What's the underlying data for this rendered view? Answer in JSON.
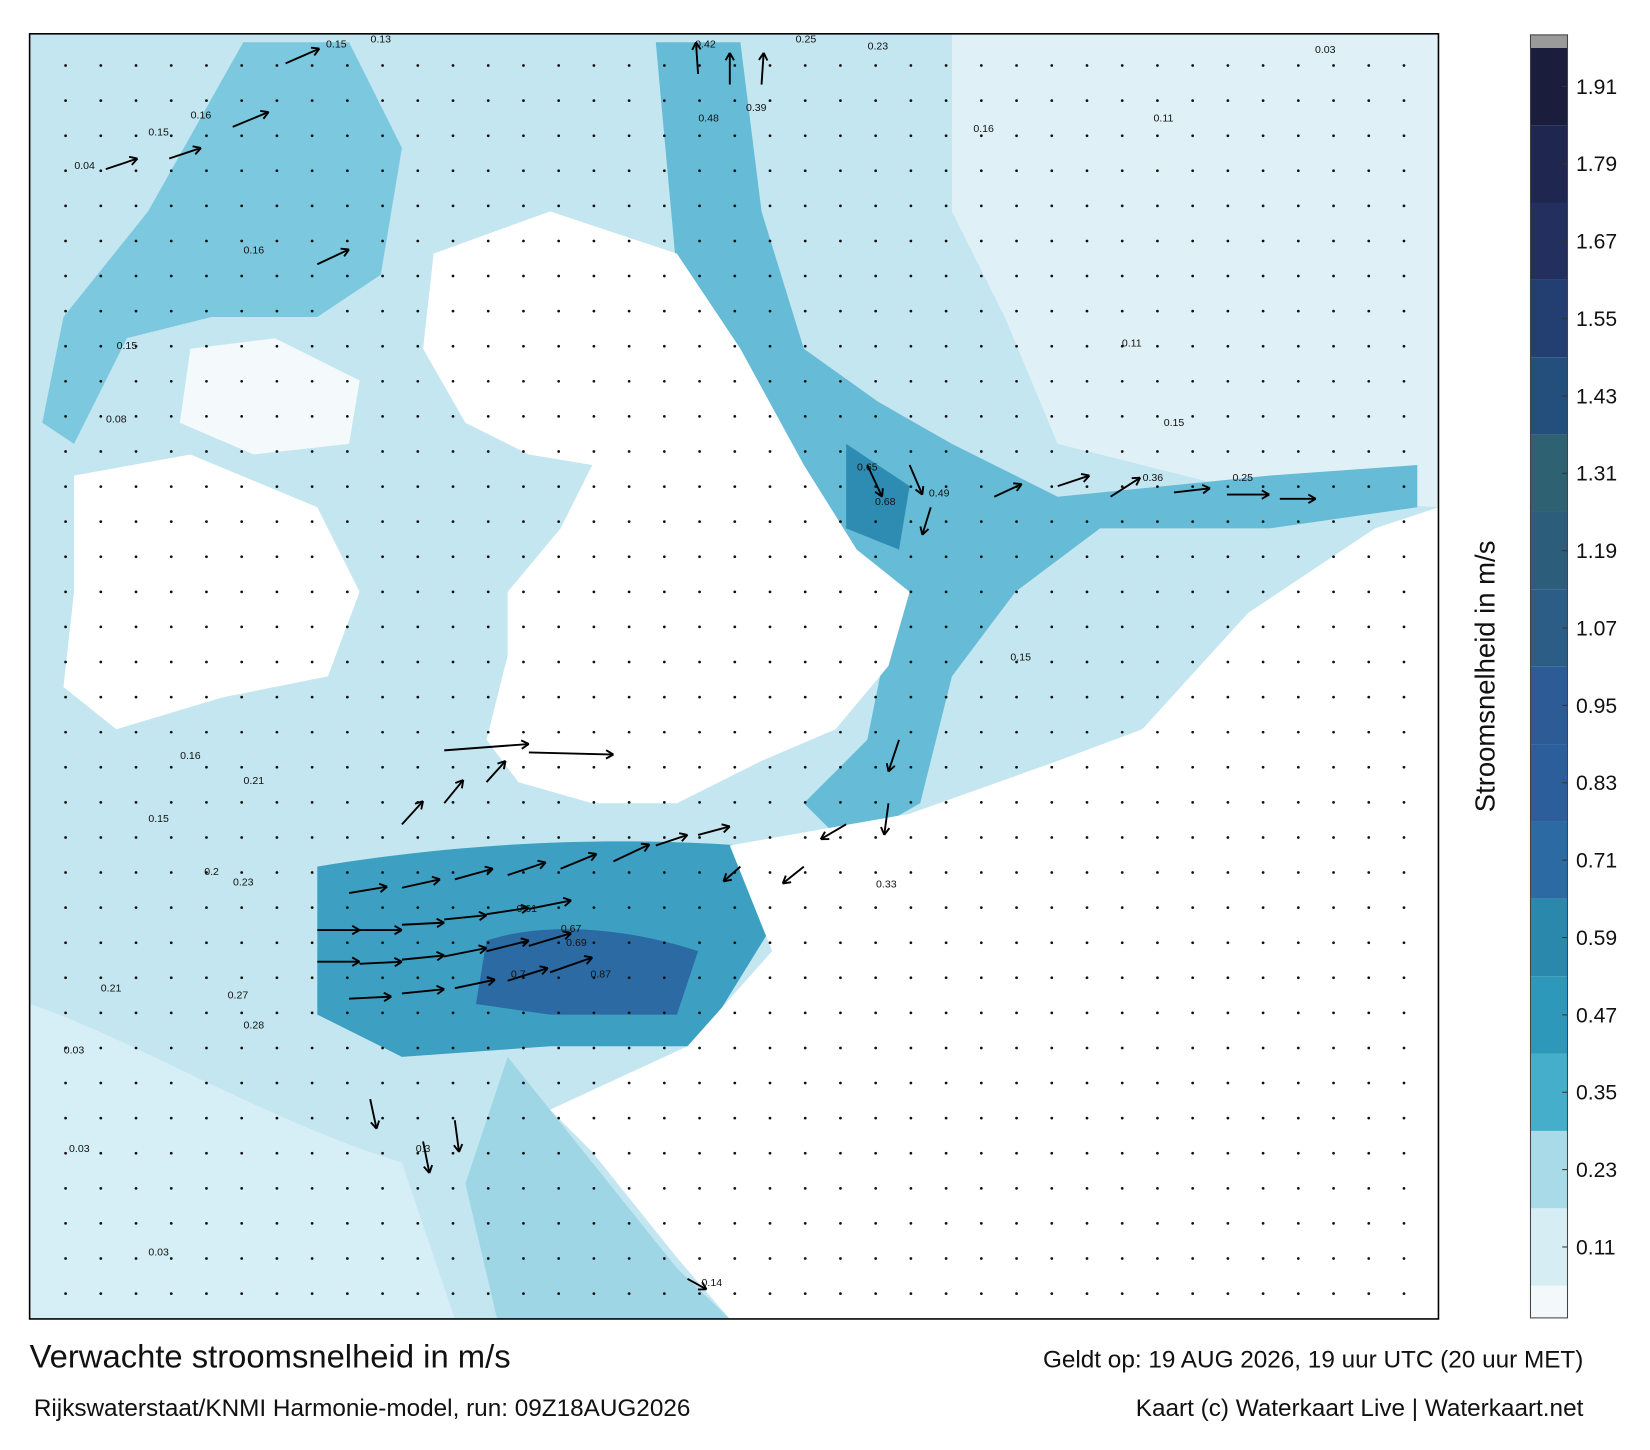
{
  "title": "Verwachte stroomsnelheid in m/s",
  "subtitle": "Rijkswaterstaat/KNMI Harmonie-model, run: 09Z18AUG2026",
  "valid_time": "Geldt op: 19 AUG 2026, 19 uur UTC (20 uur MET)",
  "credit": "Kaart (c) Waterkaart Live | Waterkaart.net",
  "colorbar": {
    "label": "Stroomsnelheid in m/s",
    "lim": [
      0,
      1.99
    ],
    "ticks": [
      0.11,
      0.23,
      0.35,
      0.47,
      0.59,
      0.71,
      0.83,
      0.95,
      1.07,
      1.19,
      1.31,
      1.43,
      1.55,
      1.67,
      1.79,
      1.91
    ],
    "bounds": [
      0,
      0.05,
      0.17,
      0.29,
      0.41,
      0.53,
      0.65,
      0.77,
      0.89,
      1.01,
      1.13,
      1.25,
      1.37,
      1.49,
      1.61,
      1.73,
      1.85,
      1.97,
      1.99
    ],
    "colors": [
      "#f3f9fb",
      "#d6edf4",
      "#a9dae8",
      "#45aecb",
      "#2e98bb",
      "#2a88ad",
      "#2c6aa3",
      "#2d5e9c",
      "#2d5b95",
      "#2c5d86",
      "#2c5e7c",
      "#2e6272",
      "#244f7c",
      "#233f72",
      "#222f5f",
      "#1f2650",
      "#1a1e3c",
      "#9a9a9a"
    ]
  },
  "map_labels": [
    0.15,
    0.13,
    0.16,
    0.04,
    0.15,
    0.16,
    0.15,
    0.08,
    0.16,
    0.21,
    0.15,
    0.2,
    0.23,
    0.21,
    0.27,
    0.28,
    0.03,
    0.03,
    0.03,
    0.3,
    0.61,
    0.67,
    0.69,
    0.87,
    0.7,
    0.68,
    0.65,
    0.49,
    0.23,
    0.25,
    0.16,
    0.11,
    0.03,
    0.11,
    0.15,
    0.36,
    0.25,
    0.14,
    0.15,
    0.33,
    0.42,
    0.48,
    0.39
  ]
}
